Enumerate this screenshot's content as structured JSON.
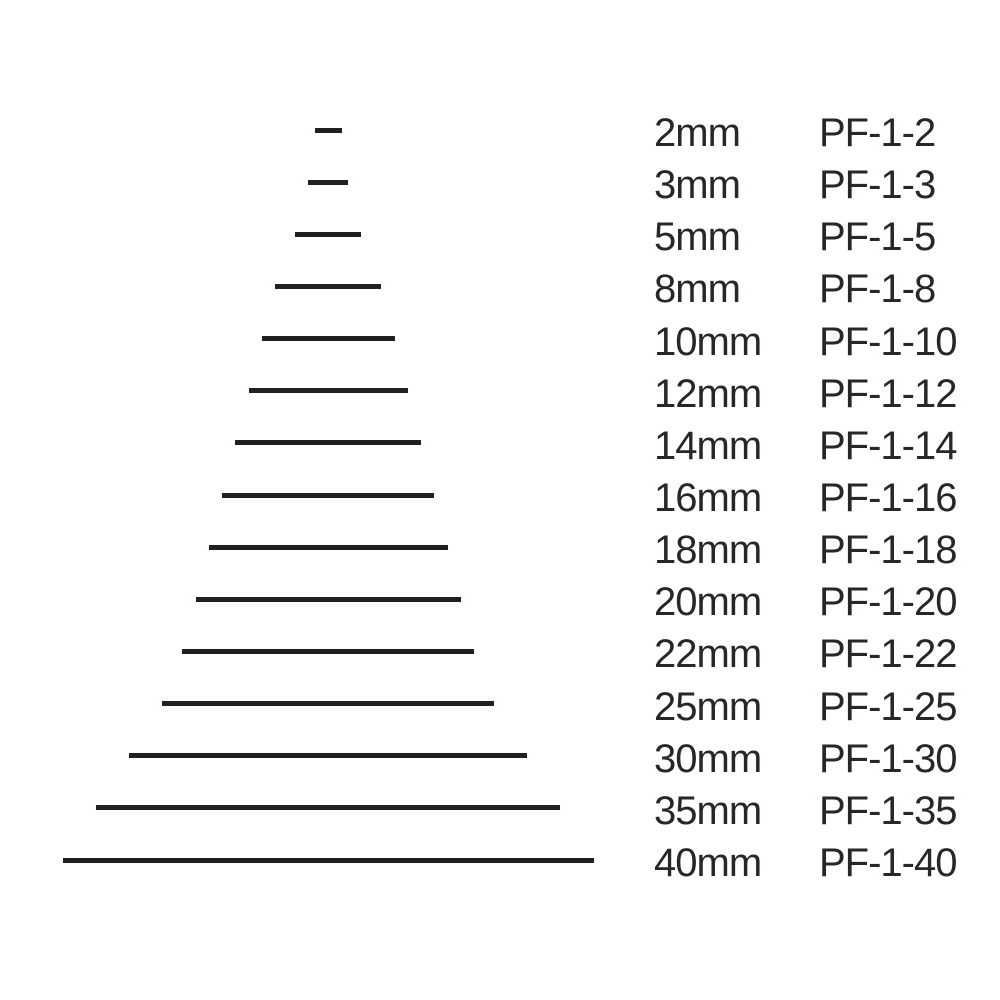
{
  "page": {
    "background_color": "#ffffff",
    "ink_color": "#231f20",
    "text_color": "#2a2627"
  },
  "chart_data": {
    "type": "bar",
    "orientation": "horizontal-centered",
    "title": "",
    "xlabel": "",
    "ylabel": "",
    "categories": [
      "PF-1-2",
      "PF-1-3",
      "PF-1-5",
      "PF-1-8",
      "PF-1-10",
      "PF-1-12",
      "PF-1-14",
      "PF-1-16",
      "PF-1-18",
      "PF-1-20",
      "PF-1-22",
      "PF-1-25",
      "PF-1-30",
      "PF-1-35",
      "PF-1-40"
    ],
    "values": [
      2,
      3,
      5,
      8,
      10,
      12,
      14,
      16,
      18,
      20,
      22,
      25,
      30,
      35,
      40
    ],
    "value_unit": "mm",
    "legend": "none",
    "grid": "off"
  },
  "rows": [
    {
      "size_mm": 2,
      "size_label": "2mm",
      "code": "PF-1-2"
    },
    {
      "size_mm": 3,
      "size_label": "3mm",
      "code": "PF-1-3"
    },
    {
      "size_mm": 5,
      "size_label": "5mm",
      "code": "PF-1-5"
    },
    {
      "size_mm": 8,
      "size_label": "8mm",
      "code": "PF-1-8"
    },
    {
      "size_mm": 10,
      "size_label": "10mm",
      "code": "PF-1-10"
    },
    {
      "size_mm": 12,
      "size_label": "12mm",
      "code": "PF-1-12"
    },
    {
      "size_mm": 14,
      "size_label": "14mm",
      "code": "PF-1-14"
    },
    {
      "size_mm": 16,
      "size_label": "16mm",
      "code": "PF-1-16"
    },
    {
      "size_mm": 18,
      "size_label": "18mm",
      "code": "PF-1-18"
    },
    {
      "size_mm": 20,
      "size_label": "20mm",
      "code": "PF-1-20"
    },
    {
      "size_mm": 22,
      "size_label": "22mm",
      "code": "PF-1-22"
    },
    {
      "size_mm": 25,
      "size_label": "25mm",
      "code": "PF-1-25"
    },
    {
      "size_mm": 30,
      "size_label": "30mm",
      "code": "PF-1-30"
    },
    {
      "size_mm": 35,
      "size_label": "35mm",
      "code": "PF-1-35"
    },
    {
      "size_mm": 40,
      "size_label": "40mm",
      "code": "PF-1-40"
    }
  ]
}
